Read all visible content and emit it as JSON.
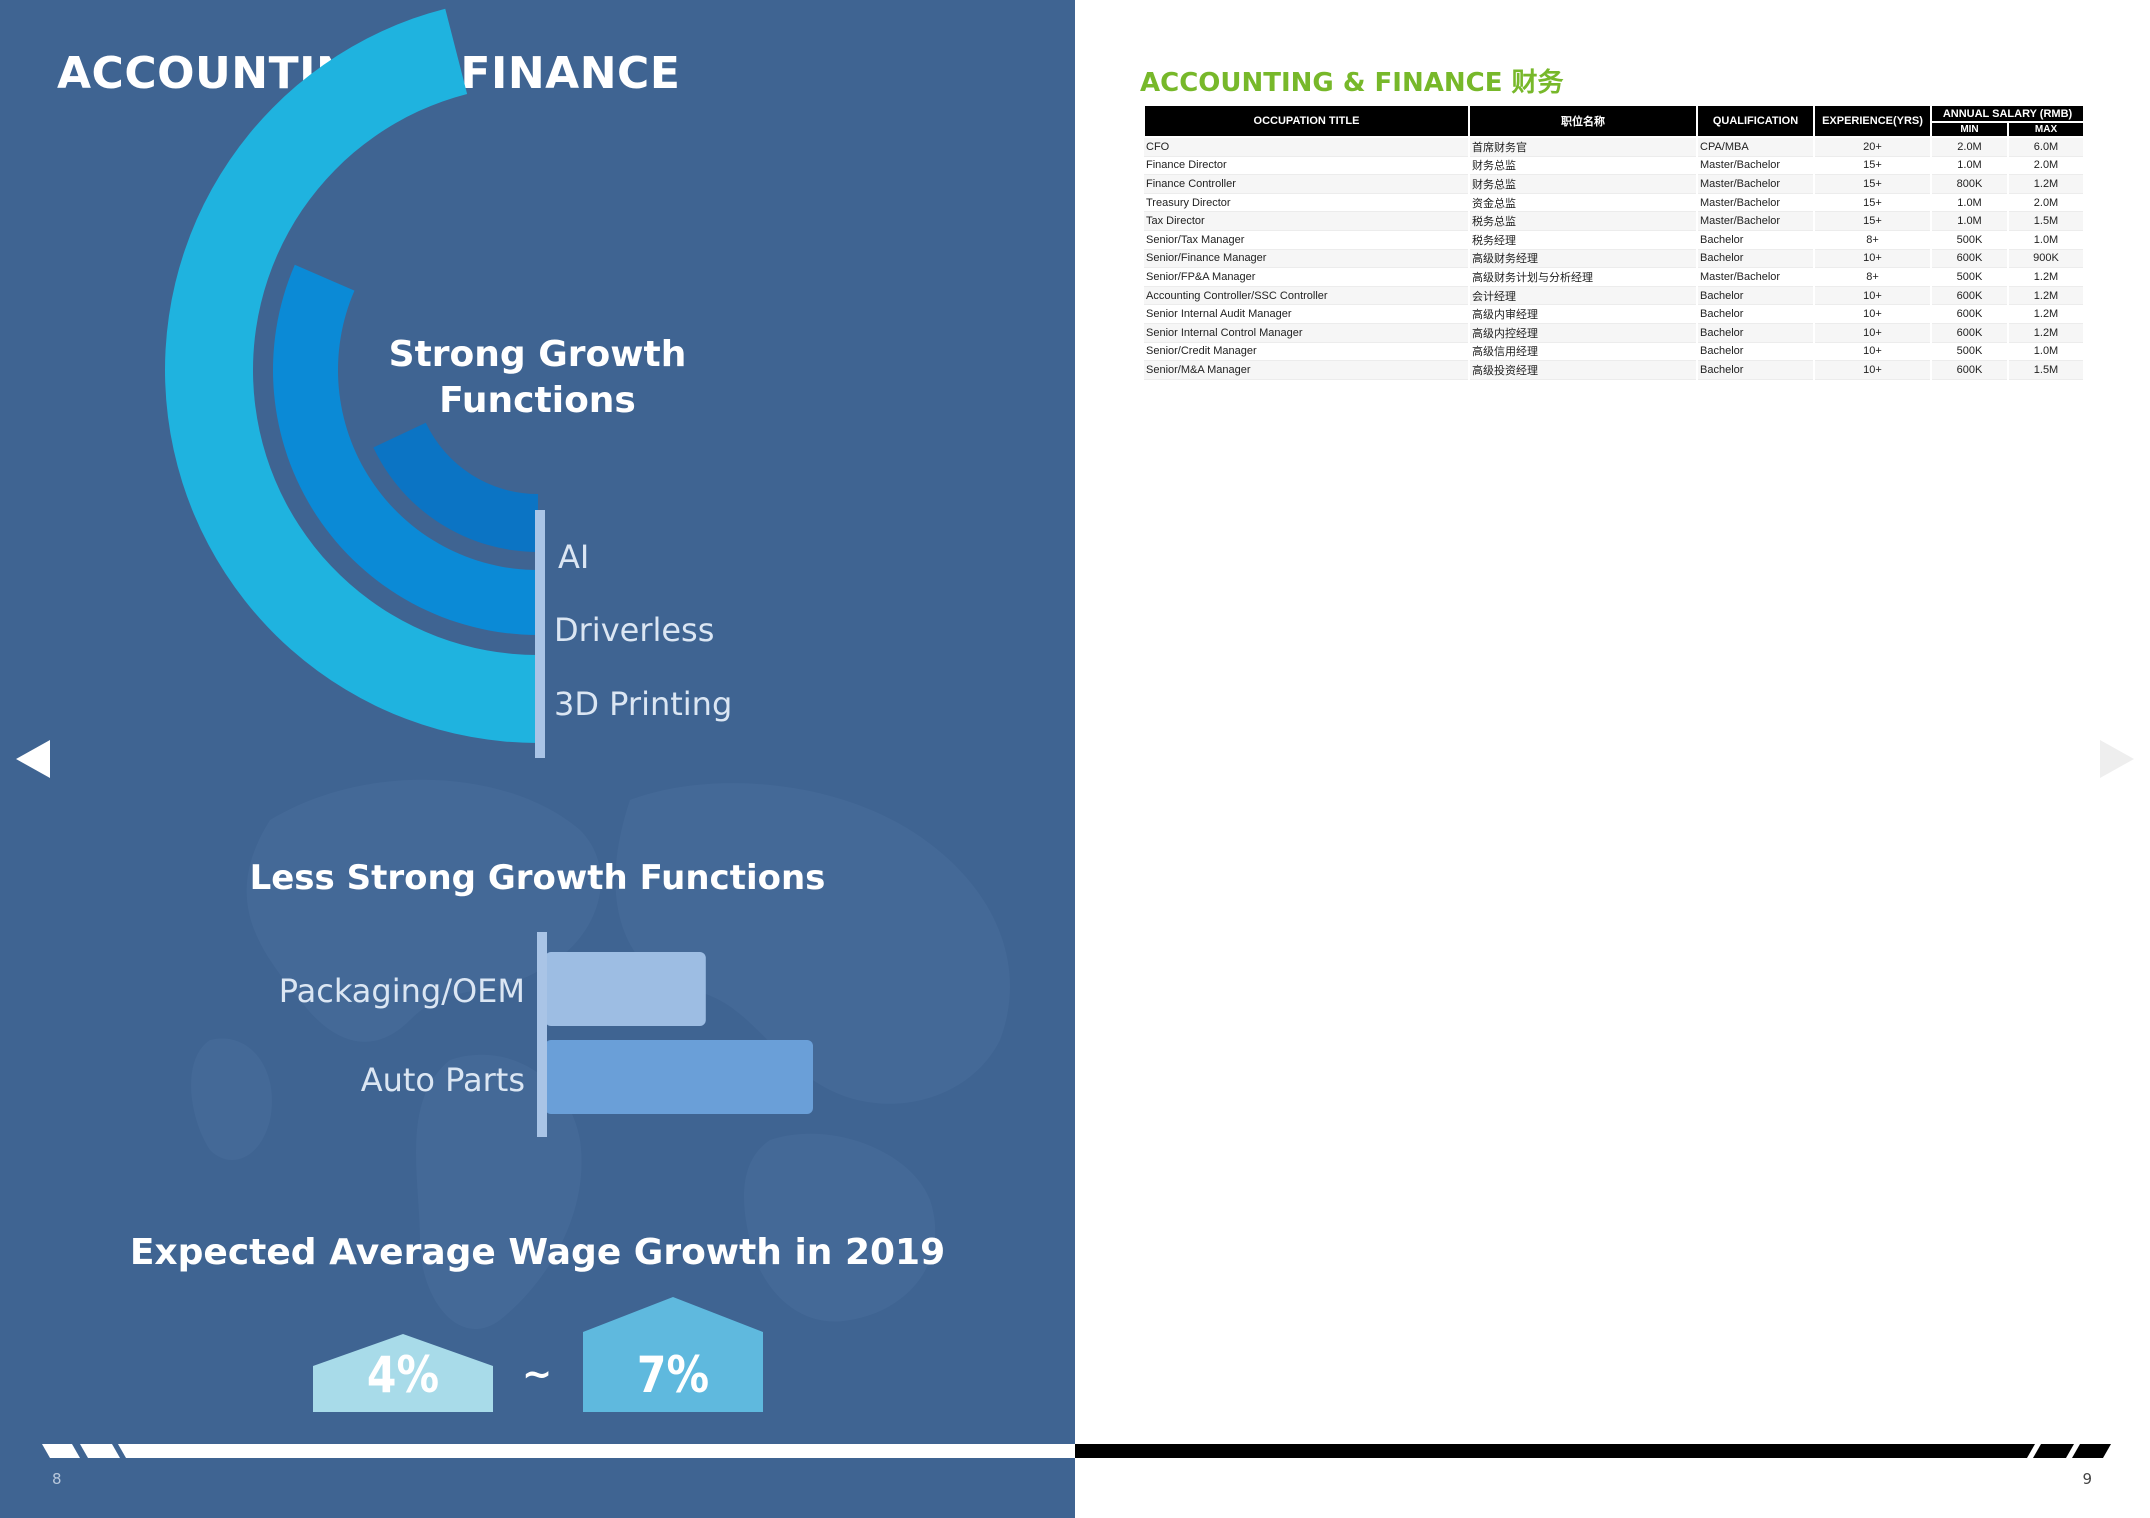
{
  "left_page": {
    "title": "ACCOUNTING & FINANCE",
    "strong_growth": {
      "title_line1": "Strong Growth",
      "title_line2": "Functions",
      "items": [
        "AI",
        "Driverless",
        "3D Printing"
      ]
    },
    "less_strong_growth": {
      "title": "Less Strong Growth Functions",
      "items": [
        "Packaging/OEM",
        "Auto Parts"
      ]
    },
    "wage_growth": {
      "title": "Expected Average Wage Growth in 2019",
      "low": "4%",
      "separator": "~",
      "high": "7%"
    },
    "page_number": "8"
  },
  "chart_data": [
    {
      "type": "bar",
      "orientation": "concentric-arc",
      "categories": [
        "AI",
        "Driverless",
        "3D Printing"
      ],
      "values": [
        0.36,
        0.63,
        0.92
      ],
      "colors": [
        "#0b74c4",
        "#0b8ad6",
        "#1fb3df"
      ]
    },
    {
      "type": "bar",
      "orientation": "horizontal",
      "categories": [
        "Packaging/OEM",
        "Auto Parts"
      ],
      "values": [
        0.6,
        1.0
      ],
      "colors": [
        "#9dbde3",
        "#6a9fd8"
      ]
    }
  ],
  "right_page": {
    "title": "ACCOUNTING & FINANCE",
    "title_cn": "财务",
    "page_number": "9",
    "table": {
      "headers": {
        "occupation": "OCCUPATION TITLE",
        "occupation_cn": "职位名称",
        "qualification": "QUALIFICATION",
        "experience": "EXPERIENCE(YRS)",
        "salary": "ANNUAL SALARY (RMB)",
        "min": "MIN",
        "max": "MAX"
      },
      "rows": [
        {
          "title": "CFO",
          "cn": "首席财务官",
          "qual": "CPA/MBA",
          "exp": "20+",
          "min": "2.0M",
          "max": "6.0M"
        },
        {
          "title": "Finance Director",
          "cn": "财务总监",
          "qual": "Master/Bachelor",
          "exp": "15+",
          "min": "1.0M",
          "max": "2.0M"
        },
        {
          "title": "Finance Controller",
          "cn": "财务总监",
          "qual": "Master/Bachelor",
          "exp": "15+",
          "min": "800K",
          "max": "1.2M"
        },
        {
          "title": "Treasury Director",
          "cn": "资金总监",
          "qual": "Master/Bachelor",
          "exp": "15+",
          "min": "1.0M",
          "max": "2.0M"
        },
        {
          "title": "Tax Director",
          "cn": "税务总监",
          "qual": "Master/Bachelor",
          "exp": "15+",
          "min": "1.0M",
          "max": "1.5M"
        },
        {
          "title": "Senior/Tax Manager",
          "cn": "税务经理",
          "qual": "Bachelor",
          "exp": "8+",
          "min": "500K",
          "max": "1.0M"
        },
        {
          "title": "Senior/Finance Manager",
          "cn": "高级财务经理",
          "qual": "Bachelor",
          "exp": "10+",
          "min": "600K",
          "max": "900K"
        },
        {
          "title": "Senior/FP&A Manager",
          "cn": "高级财务计划与分析经理",
          "qual": "Master/Bachelor",
          "exp": "8+",
          "min": "500K",
          "max": "1.2M"
        },
        {
          "title": "Accounting Controller/SSC Controller",
          "cn": "会计经理",
          "qual": "Bachelor",
          "exp": "10+",
          "min": "600K",
          "max": "1.2M"
        },
        {
          "title": "Senior Internal Audit Manager",
          "cn": "高级内审经理",
          "qual": "Bachelor",
          "exp": "10+",
          "min": "600K",
          "max": "1.2M"
        },
        {
          "title": "Senior Internal Control Manager",
          "cn": "高级内控经理",
          "qual": "Bachelor",
          "exp": "10+",
          "min": "600K",
          "max": "1.2M"
        },
        {
          "title": "Senior/Credit Manager",
          "cn": "高级信用经理",
          "qual": "Bachelor",
          "exp": "10+",
          "min": "500K",
          "max": "1.0M"
        },
        {
          "title": "Senior/M&A Manager",
          "cn": "高级投资经理",
          "qual": "Bachelor",
          "exp": "10+",
          "min": "600K",
          "max": "1.5M"
        }
      ]
    }
  },
  "navigation": {
    "prev_icon": "triangle-left-icon",
    "next_icon": "triangle-right-icon"
  }
}
